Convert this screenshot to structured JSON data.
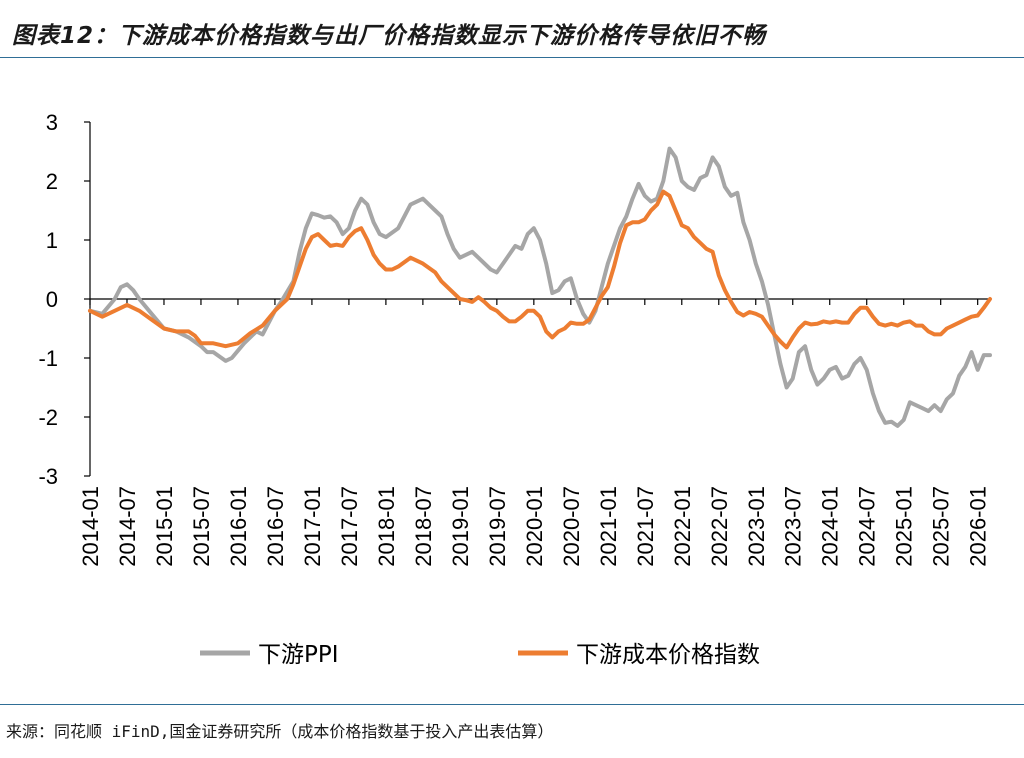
{
  "title": "图表12：下游成本价格指数与出厂价格指数显示下游价格传导依旧不畅",
  "source": "来源：同花顺 iFinD,国金证券研究所（成本价格指数基于投入产出表估算）",
  "chart_data": {
    "type": "line",
    "ylim": [
      -3,
      3
    ],
    "yticks": [
      3,
      2,
      1,
      0,
      -1,
      -2,
      -3
    ],
    "xrange": [
      "2014-01",
      "2026-03"
    ],
    "xticks": [
      "2014-01",
      "2014-07",
      "2015-01",
      "2015-07",
      "2016-01",
      "2016-07",
      "2017-01",
      "2017-07",
      "2018-01",
      "2018-07",
      "2019-01",
      "2019-07",
      "2020-01",
      "2020-07",
      "2021-01",
      "2021-07",
      "2022-01",
      "2022-07",
      "2023-01",
      "2023-07",
      "2024-01",
      "2024-07",
      "2025-01",
      "2025-07",
      "2026-01"
    ],
    "legend_position": "bottom",
    "series": [
      {
        "name": "下游PPI",
        "color": "#a6a6a6",
        "points": [
          [
            "2014-01",
            -0.2
          ],
          [
            "2014-03",
            -0.25
          ],
          [
            "2014-05",
            0.0
          ],
          [
            "2014-06",
            0.2
          ],
          [
            "2014-07",
            0.25
          ],
          [
            "2014-08",
            0.15
          ],
          [
            "2014-09",
            0.0
          ],
          [
            "2014-11",
            -0.25
          ],
          [
            "2015-01",
            -0.5
          ],
          [
            "2015-03",
            -0.55
          ],
          [
            "2015-05",
            -0.65
          ],
          [
            "2015-07",
            -0.8
          ],
          [
            "2015-08",
            -0.9
          ],
          [
            "2015-09",
            -0.9
          ],
          [
            "2015-11",
            -1.05
          ],
          [
            "2015-12",
            -1.0
          ],
          [
            "2016-02",
            -0.75
          ],
          [
            "2016-04",
            -0.55
          ],
          [
            "2016-05",
            -0.6
          ],
          [
            "2016-07",
            -0.2
          ],
          [
            "2016-08",
            -0.05
          ],
          [
            "2016-10",
            0.3
          ],
          [
            "2016-11",
            0.8
          ],
          [
            "2016-12",
            1.2
          ],
          [
            "2017-01",
            1.45
          ],
          [
            "2017-02",
            1.42
          ],
          [
            "2017-03",
            1.38
          ],
          [
            "2017-04",
            1.4
          ],
          [
            "2017-05",
            1.3
          ],
          [
            "2017-06",
            1.1
          ],
          [
            "2017-07",
            1.2
          ],
          [
            "2017-08",
            1.5
          ],
          [
            "2017-09",
            1.7
          ],
          [
            "2017-10",
            1.6
          ],
          [
            "2017-11",
            1.3
          ],
          [
            "2017-12",
            1.1
          ],
          [
            "2018-01",
            1.05
          ],
          [
            "2018-03",
            1.2
          ],
          [
            "2018-05",
            1.6
          ],
          [
            "2018-07",
            1.7
          ],
          [
            "2018-08",
            1.6
          ],
          [
            "2018-09",
            1.5
          ],
          [
            "2018-10",
            1.4
          ],
          [
            "2018-11",
            1.1
          ],
          [
            "2018-12",
            0.85
          ],
          [
            "2019-01",
            0.7
          ],
          [
            "2019-03",
            0.8
          ],
          [
            "2019-04",
            0.7
          ],
          [
            "2019-06",
            0.5
          ],
          [
            "2019-07",
            0.45
          ],
          [
            "2019-08",
            0.6
          ],
          [
            "2019-10",
            0.9
          ],
          [
            "2019-11",
            0.85
          ],
          [
            "2019-12",
            1.1
          ],
          [
            "2020-01",
            1.2
          ],
          [
            "2020-02",
            1.0
          ],
          [
            "2020-03",
            0.6
          ],
          [
            "2020-04",
            0.1
          ],
          [
            "2020-05",
            0.15
          ],
          [
            "2020-06",
            0.3
          ],
          [
            "2020-07",
            0.35
          ],
          [
            "2020-08",
            0.0
          ],
          [
            "2020-09",
            -0.25
          ],
          [
            "2020-10",
            -0.4
          ],
          [
            "2020-11",
            -0.2
          ],
          [
            "2020-12",
            0.2
          ],
          [
            "2021-01",
            0.6
          ],
          [
            "2021-03",
            1.2
          ],
          [
            "2021-04",
            1.4
          ],
          [
            "2021-05",
            1.7
          ],
          [
            "2021-06",
            1.95
          ],
          [
            "2021-07",
            1.75
          ],
          [
            "2021-08",
            1.65
          ],
          [
            "2021-09",
            1.7
          ],
          [
            "2021-10",
            2.0
          ],
          [
            "2021-11",
            2.55
          ],
          [
            "2021-12",
            2.4
          ],
          [
            "2022-01",
            2.0
          ],
          [
            "2022-02",
            1.9
          ],
          [
            "2022-03",
            1.85
          ],
          [
            "2022-04",
            2.05
          ],
          [
            "2022-05",
            2.1
          ],
          [
            "2022-06",
            2.4
          ],
          [
            "2022-07",
            2.25
          ],
          [
            "2022-08",
            1.9
          ],
          [
            "2022-09",
            1.75
          ],
          [
            "2022-10",
            1.8
          ],
          [
            "2022-11",
            1.3
          ],
          [
            "2022-12",
            1.0
          ],
          [
            "2023-01",
            0.6
          ],
          [
            "2023-02",
            0.3
          ],
          [
            "2023-03",
            -0.1
          ],
          [
            "2023-04",
            -0.6
          ],
          [
            "2023-05",
            -1.1
          ],
          [
            "2023-06",
            -1.5
          ],
          [
            "2023-07",
            -1.35
          ],
          [
            "2023-08",
            -0.9
          ],
          [
            "2023-09",
            -0.8
          ],
          [
            "2023-10",
            -1.2
          ],
          [
            "2023-11",
            -1.45
          ],
          [
            "2023-12",
            -1.35
          ],
          [
            "2024-01",
            -1.2
          ],
          [
            "2024-02",
            -1.15
          ],
          [
            "2024-03",
            -1.35
          ],
          [
            "2024-04",
            -1.3
          ],
          [
            "2024-05",
            -1.1
          ],
          [
            "2024-06",
            -1.0
          ],
          [
            "2024-07",
            -1.2
          ],
          [
            "2024-08",
            -1.6
          ],
          [
            "2024-09",
            -1.9
          ],
          [
            "2024-10",
            -2.1
          ],
          [
            "2024-11",
            -2.08
          ],
          [
            "2024-12",
            -2.15
          ],
          [
            "2025-01",
            -2.05
          ],
          [
            "2025-02",
            -1.75
          ],
          [
            "2025-03",
            -1.8
          ],
          [
            "2025-04",
            -1.85
          ],
          [
            "2025-05",
            -1.9
          ],
          [
            "2025-06",
            -1.8
          ],
          [
            "2025-07",
            -1.9
          ],
          [
            "2025-08",
            -1.7
          ],
          [
            "2025-09",
            -1.6
          ],
          [
            "2025-10",
            -1.3
          ],
          [
            "2025-11",
            -1.15
          ],
          [
            "2025-12",
            -0.9
          ],
          [
            "2026-01",
            -1.2
          ],
          [
            "2026-02",
            -0.95
          ],
          [
            "2026-03",
            -0.95
          ]
        ]
      },
      {
        "name": "下游成本价格指数",
        "color": "#ed7d31",
        "points": [
          [
            "2014-01",
            -0.2
          ],
          [
            "2014-03",
            -0.3
          ],
          [
            "2014-05",
            -0.2
          ],
          [
            "2014-07",
            -0.1
          ],
          [
            "2014-09",
            -0.2
          ],
          [
            "2014-11",
            -0.35
          ],
          [
            "2015-01",
            -0.5
          ],
          [
            "2015-03",
            -0.55
          ],
          [
            "2015-05",
            -0.55
          ],
          [
            "2015-06",
            -0.62
          ],
          [
            "2015-07",
            -0.75
          ],
          [
            "2015-09",
            -0.75
          ],
          [
            "2015-11",
            -0.8
          ],
          [
            "2016-01",
            -0.75
          ],
          [
            "2016-03",
            -0.58
          ],
          [
            "2016-05",
            -0.45
          ],
          [
            "2016-07",
            -0.2
          ],
          [
            "2016-09",
            0.0
          ],
          [
            "2016-10",
            0.25
          ],
          [
            "2016-12",
            0.85
          ],
          [
            "2017-01",
            1.05
          ],
          [
            "2017-02",
            1.1
          ],
          [
            "2017-03",
            1.0
          ],
          [
            "2017-04",
            0.9
          ],
          [
            "2017-05",
            0.92
          ],
          [
            "2017-06",
            0.9
          ],
          [
            "2017-07",
            1.05
          ],
          [
            "2017-08",
            1.15
          ],
          [
            "2017-09",
            1.2
          ],
          [
            "2017-10",
            1.0
          ],
          [
            "2017-11",
            0.75
          ],
          [
            "2017-12",
            0.6
          ],
          [
            "2018-01",
            0.5
          ],
          [
            "2018-02",
            0.5
          ],
          [
            "2018-03",
            0.55
          ],
          [
            "2018-05",
            0.7
          ],
          [
            "2018-07",
            0.6
          ],
          [
            "2018-09",
            0.45
          ],
          [
            "2018-10",
            0.3
          ],
          [
            "2018-12",
            0.1
          ],
          [
            "2019-01",
            0.0
          ],
          [
            "2019-02",
            -0.02
          ],
          [
            "2019-03",
            -0.05
          ],
          [
            "2019-04",
            0.03
          ],
          [
            "2019-05",
            -0.05
          ],
          [
            "2019-06",
            -0.15
          ],
          [
            "2019-07",
            -0.2
          ],
          [
            "2019-08",
            -0.3
          ],
          [
            "2019-09",
            -0.38
          ],
          [
            "2019-10",
            -0.38
          ],
          [
            "2019-11",
            -0.3
          ],
          [
            "2019-12",
            -0.2
          ],
          [
            "2020-01",
            -0.2
          ],
          [
            "2020-02",
            -0.3
          ],
          [
            "2020-03",
            -0.55
          ],
          [
            "2020-04",
            -0.65
          ],
          [
            "2020-05",
            -0.55
          ],
          [
            "2020-06",
            -0.5
          ],
          [
            "2020-07",
            -0.4
          ],
          [
            "2020-08",
            -0.42
          ],
          [
            "2020-09",
            -0.42
          ],
          [
            "2020-10",
            -0.35
          ],
          [
            "2020-11",
            -0.15
          ],
          [
            "2020-12",
            0.05
          ],
          [
            "2021-01",
            0.2
          ],
          [
            "2021-02",
            0.55
          ],
          [
            "2021-03",
            0.95
          ],
          [
            "2021-04",
            1.25
          ],
          [
            "2021-05",
            1.3
          ],
          [
            "2021-06",
            1.3
          ],
          [
            "2021-07",
            1.35
          ],
          [
            "2021-08",
            1.5
          ],
          [
            "2021-09",
            1.6
          ],
          [
            "2021-10",
            1.82
          ],
          [
            "2021-11",
            1.75
          ],
          [
            "2021-12",
            1.5
          ],
          [
            "2022-01",
            1.25
          ],
          [
            "2022-02",
            1.2
          ],
          [
            "2022-03",
            1.05
          ],
          [
            "2022-04",
            0.95
          ],
          [
            "2022-05",
            0.85
          ],
          [
            "2022-06",
            0.8
          ],
          [
            "2022-07",
            0.4
          ],
          [
            "2022-08",
            0.15
          ],
          [
            "2022-09",
            -0.05
          ],
          [
            "2022-10",
            -0.22
          ],
          [
            "2022-11",
            -0.28
          ],
          [
            "2022-12",
            -0.22
          ],
          [
            "2023-01",
            -0.25
          ],
          [
            "2023-02",
            -0.3
          ],
          [
            "2023-03",
            -0.45
          ],
          [
            "2023-04",
            -0.6
          ],
          [
            "2023-05",
            -0.72
          ],
          [
            "2023-06",
            -0.82
          ],
          [
            "2023-07",
            -0.65
          ],
          [
            "2023-08",
            -0.5
          ],
          [
            "2023-09",
            -0.4
          ],
          [
            "2023-10",
            -0.43
          ],
          [
            "2023-11",
            -0.42
          ],
          [
            "2023-12",
            -0.38
          ],
          [
            "2024-01",
            -0.4
          ],
          [
            "2024-02",
            -0.38
          ],
          [
            "2024-03",
            -0.4
          ],
          [
            "2024-04",
            -0.4
          ],
          [
            "2024-05",
            -0.25
          ],
          [
            "2024-06",
            -0.15
          ],
          [
            "2024-07",
            -0.15
          ],
          [
            "2024-08",
            -0.3
          ],
          [
            "2024-09",
            -0.42
          ],
          [
            "2024-10",
            -0.45
          ],
          [
            "2024-11",
            -0.42
          ],
          [
            "2024-12",
            -0.45
          ],
          [
            "2025-01",
            -0.4
          ],
          [
            "2025-02",
            -0.38
          ],
          [
            "2025-03",
            -0.45
          ],
          [
            "2025-04",
            -0.45
          ],
          [
            "2025-05",
            -0.55
          ],
          [
            "2025-06",
            -0.6
          ],
          [
            "2025-07",
            -0.6
          ],
          [
            "2025-08",
            -0.5
          ],
          [
            "2025-09",
            -0.45
          ],
          [
            "2025-10",
            -0.4
          ],
          [
            "2025-11",
            -0.35
          ],
          [
            "2025-12",
            -0.3
          ],
          [
            "2026-01",
            -0.28
          ],
          [
            "2026-02",
            -0.15
          ],
          [
            "2026-03",
            0.0
          ]
        ]
      }
    ]
  }
}
